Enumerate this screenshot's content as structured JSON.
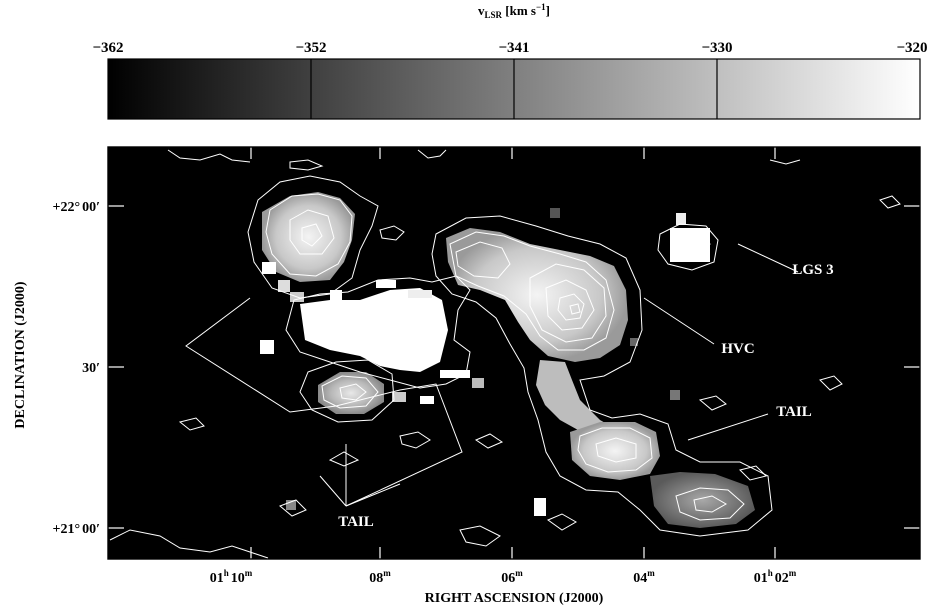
{
  "colorbar": {
    "title_main": "v",
    "title_sub": "LSR",
    "title_units": " [km s",
    "title_exp": "−1",
    "title_close": "]",
    "ticks": [
      "−362",
      "−352",
      "−341",
      "−330",
      "−320"
    ],
    "gradient": [
      "#000000",
      "#ffffff"
    ]
  },
  "map": {
    "ylabel": "DECLINATION (J2000)",
    "xlabel": "RIGHT ASCENSION (J2000)",
    "y_ticks": [
      {
        "deg": "+22°",
        "min": "00′"
      },
      {
        "deg": "",
        "min": "30′"
      },
      {
        "deg": "+21°",
        "min": "00′"
      }
    ],
    "x_ticks": [
      {
        "h": "01",
        "hs": "h",
        "m": "10",
        "ms": "m"
      },
      {
        "h": "",
        "hs": "",
        "m": "08",
        "ms": "m"
      },
      {
        "h": "",
        "hs": "",
        "m": "06",
        "ms": "m"
      },
      {
        "h": "",
        "hs": "",
        "m": "04",
        "ms": "m"
      },
      {
        "h": "01",
        "hs": "h",
        "m": "02",
        "ms": "m"
      }
    ],
    "annotations": {
      "lgs3": "LGS 3",
      "hvc": "HVC",
      "tail_right": "TAIL",
      "tail_bottom": "TAIL"
    },
    "colors": {
      "background": "#000000",
      "contour": "#ffffff",
      "frame": "#000000"
    }
  }
}
